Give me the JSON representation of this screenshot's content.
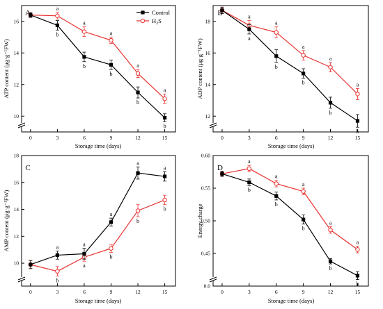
{
  "colors": {
    "control": "#000000",
    "h2s": "#e8312f"
  },
  "legend": {
    "control": "Control",
    "h2s_main": "H",
    "h2s_sub": "2",
    "h2s_end": "S"
  },
  "chart_data": [
    {
      "type": "line",
      "panel": "A",
      "x": [
        0,
        3,
        6,
        9,
        12,
        15
      ],
      "xticks": [
        "0",
        "3",
        "6",
        "9",
        "12",
        "15"
      ],
      "xlabel": "Storage time (days)",
      "ylabel": "ATP content (μg·g⁻¹FW)",
      "ylim": [
        9,
        17
      ],
      "yticks": [
        10,
        12,
        14,
        16
      ],
      "grid": false,
      "legend": "top-right",
      "series": [
        {
          "name": "Control",
          "values": [
            16.4,
            15.75,
            13.75,
            13.25,
            11.5,
            9.9
          ],
          "errors": [
            0.15,
            0.3,
            0.3,
            0.3,
            0.35,
            0.25
          ],
          "labels": [
            "",
            "b",
            "b",
            "b",
            "b",
            "b"
          ]
        },
        {
          "name": "H2S",
          "values": [
            16.4,
            16.35,
            15.35,
            14.8,
            12.7,
            11.1
          ],
          "errors": [
            0.15,
            0.2,
            0.3,
            0.2,
            0.25,
            0.3
          ],
          "labels": [
            "",
            "a",
            "a",
            "a",
            "a",
            "a"
          ]
        }
      ]
    },
    {
      "type": "line",
      "panel": "B",
      "x": [
        0,
        3,
        6,
        9,
        12,
        15
      ],
      "xticks": [
        "0",
        "3",
        "6",
        "9",
        "12",
        "15"
      ],
      "xlabel": "Storage time (days)",
      "ylabel": "ADP content (μg·g⁻¹FW)",
      "ylim": [
        11,
        19
      ],
      "yticks": [
        12,
        14,
        16,
        18
      ],
      "grid": false,
      "series": [
        {
          "name": "Control",
          "values": [
            18.7,
            17.5,
            15.8,
            14.7,
            12.85,
            11.7
          ],
          "errors": [
            0.2,
            0.3,
            0.4,
            0.3,
            0.35,
            0.4
          ],
          "labels": [
            "",
            "a",
            "b",
            "b",
            "b",
            "b"
          ]
        },
        {
          "name": "H2S",
          "values": [
            18.7,
            17.75,
            17.3,
            15.85,
            15.1,
            13.4
          ],
          "errors": [
            0.2,
            0.3,
            0.35,
            0.3,
            0.3,
            0.35
          ],
          "labels": [
            "",
            "a",
            "a",
            "a",
            "a",
            "a"
          ]
        }
      ]
    },
    {
      "type": "line",
      "panel": "C",
      "x": [
        0,
        3,
        6,
        9,
        12,
        15
      ],
      "xticks": [
        "0",
        "3",
        "6",
        "9",
        "12",
        "15"
      ],
      "xlabel": "Storage time (days)",
      "ylabel": "AMP content (μg·g⁻¹FW)",
      "ylim": [
        8.3,
        18
      ],
      "yticks": [
        10,
        12,
        14,
        16,
        18
      ],
      "grid": false,
      "series": [
        {
          "name": "Control",
          "values": [
            9.9,
            10.6,
            10.7,
            13.05,
            16.7,
            16.45
          ],
          "errors": [
            0.3,
            0.3,
            0.4,
            0.3,
            0.45,
            0.35
          ],
          "labels": [
            "",
            "a",
            "a",
            "a",
            "a",
            "a"
          ]
        },
        {
          "name": "H2S",
          "values": [
            9.9,
            9.4,
            10.45,
            11.1,
            13.9,
            14.7
          ],
          "errors": [
            0.3,
            0.35,
            0.3,
            0.3,
            0.45,
            0.35
          ],
          "labels": [
            "",
            "b",
            "a",
            "b",
            "b",
            "b"
          ]
        }
      ]
    },
    {
      "type": "line",
      "panel": "D",
      "x": [
        0,
        3,
        6,
        9,
        12,
        15
      ],
      "xticks": [
        "0",
        "3",
        "6",
        "9",
        "12",
        "15"
      ],
      "xlabel": "Storage time (days)",
      "ylabel": "Energy charge",
      "ylim": [
        0.4,
        0.6
      ],
      "yticks": [
        0.45,
        0.5,
        0.55,
        0.6
      ],
      "ytick_labels": [
        "0.45",
        "0.50",
        "0.55",
        "0.60"
      ],
      "ybreak_label": "0.0",
      "grid": false,
      "series": [
        {
          "name": "Control",
          "values": [
            0.572,
            0.559,
            0.538,
            0.502,
            0.438,
            0.416
          ],
          "errors": [
            0.004,
            0.005,
            0.006,
            0.007,
            0.004,
            0.006
          ],
          "labels": [
            "",
            "b",
            "b",
            "b",
            "b",
            "b"
          ]
        },
        {
          "name": "H2S",
          "values": [
            0.572,
            0.58,
            0.557,
            0.545,
            0.486,
            0.456
          ],
          "errors": [
            0.004,
            0.005,
            0.005,
            0.005,
            0.005,
            0.005
          ],
          "labels": [
            "",
            "a",
            "a",
            "a",
            "a",
            "a"
          ]
        }
      ]
    }
  ]
}
